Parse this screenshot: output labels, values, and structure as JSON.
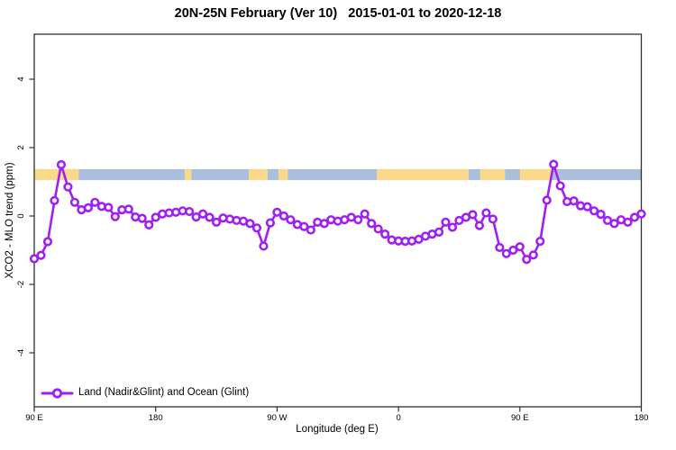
{
  "title": "20N-25N February (Ver 10)   2015-01-01 to 2020-12-18",
  "chart_data": {
    "type": "line",
    "title": "20N-25N February (Ver 10)   2015-01-01 to 2020-12-18",
    "xlabel": "Longitude (deg E)",
    "ylabel": "XCO2 - MLO trend (ppm)",
    "xlim": [
      90,
      540
    ],
    "ylim": [
      -5.6,
      5.3
    ],
    "grid": false,
    "x_ticks": [
      {
        "value": 90,
        "label": "90 E"
      },
      {
        "value": 180,
        "label": "180"
      },
      {
        "value": 270,
        "label": "90 W"
      },
      {
        "value": 360,
        "label": "0"
      },
      {
        "value": 450,
        "label": "90 E"
      },
      {
        "value": 540,
        "label": "180"
      }
    ],
    "y_ticks": [
      {
        "value": -4,
        "label": "-4"
      },
      {
        "value": -2,
        "label": "-2"
      },
      {
        "value": 0,
        "label": "0"
      },
      {
        "value": 2,
        "label": "2"
      },
      {
        "value": 4,
        "label": "4"
      }
    ],
    "legend": {
      "label": "Land (Nadir&Glint) and Ocean (Glint)",
      "position": "bottom-left"
    },
    "map_band": {
      "description": "land/ocean strip for 20N-25N latitude band",
      "y_top": 1.37,
      "y_bottom": 1.05,
      "ocean_color": "#A9BFDC",
      "land_color": "#FBD98A",
      "land_segments_lon": [
        [
          90,
          123
        ],
        [
          201.5,
          206.5
        ],
        [
          249,
          263
        ],
        [
          271,
          278
        ],
        [
          344,
          412
        ],
        [
          420.5,
          439
        ],
        [
          450,
          473.5
        ]
      ]
    },
    "series": [
      {
        "name": "Land (Nadir&Glint) and Ocean (Glint)",
        "color": "#A020F0",
        "marker": "open-circle",
        "marker_fill": "#FFFFFF",
        "x": [
          90,
          95,
          100,
          105,
          110,
          115,
          120,
          125,
          130,
          135,
          140,
          145,
          150,
          155,
          160,
          165,
          170,
          175,
          180,
          185,
          190,
          195,
          200,
          205,
          210,
          215,
          220,
          225,
          230,
          235,
          240,
          245,
          250,
          255,
          260,
          265,
          270,
          275,
          280,
          285,
          290,
          295,
          300,
          305,
          310,
          315,
          320,
          325,
          330,
          335,
          340,
          345,
          350,
          355,
          360,
          365,
          370,
          375,
          380,
          385,
          390,
          395,
          400,
          405,
          410,
          415,
          420,
          425,
          430,
          435,
          440,
          445,
          450,
          455,
          460,
          465,
          470,
          475,
          480,
          485,
          490,
          495,
          500,
          505,
          510,
          515,
          520,
          525,
          530,
          535,
          540
        ],
        "y": [
          -1.25,
          -1.15,
          -0.75,
          0.45,
          1.5,
          0.85,
          0.4,
          0.18,
          0.24,
          0.4,
          0.28,
          0.25,
          -0.02,
          0.18,
          0.2,
          -0.03,
          -0.07,
          -0.26,
          -0.04,
          0.06,
          0.09,
          0.11,
          0.15,
          0.13,
          -0.03,
          0.06,
          -0.04,
          -0.18,
          -0.06,
          -0.09,
          -0.13,
          -0.15,
          -0.22,
          -0.35,
          -0.88,
          -0.2,
          0.11,
          0.0,
          -0.11,
          -0.25,
          -0.31,
          -0.41,
          -0.18,
          -0.22,
          -0.11,
          -0.15,
          -0.11,
          -0.04,
          -0.11,
          0.06,
          -0.22,
          -0.38,
          -0.53,
          -0.7,
          -0.73,
          -0.74,
          -0.73,
          -0.68,
          -0.59,
          -0.53,
          -0.47,
          -0.18,
          -0.33,
          -0.13,
          -0.04,
          0.04,
          -0.28,
          0.09,
          -0.09,
          -0.92,
          -1.1,
          -1.0,
          -0.9,
          -1.27,
          -1.14,
          -0.74,
          0.46,
          1.51,
          0.88,
          0.42,
          0.44,
          0.3,
          0.27,
          0.15,
          0.05,
          -0.13,
          -0.22,
          -0.11,
          -0.18,
          -0.04,
          0.06
        ]
      }
    ]
  },
  "colors": {
    "series_purple": "#A020F0",
    "ocean_blue": "#A9BFDC",
    "land_orange": "#FBD98A",
    "axis": "#2F2F2F"
  }
}
